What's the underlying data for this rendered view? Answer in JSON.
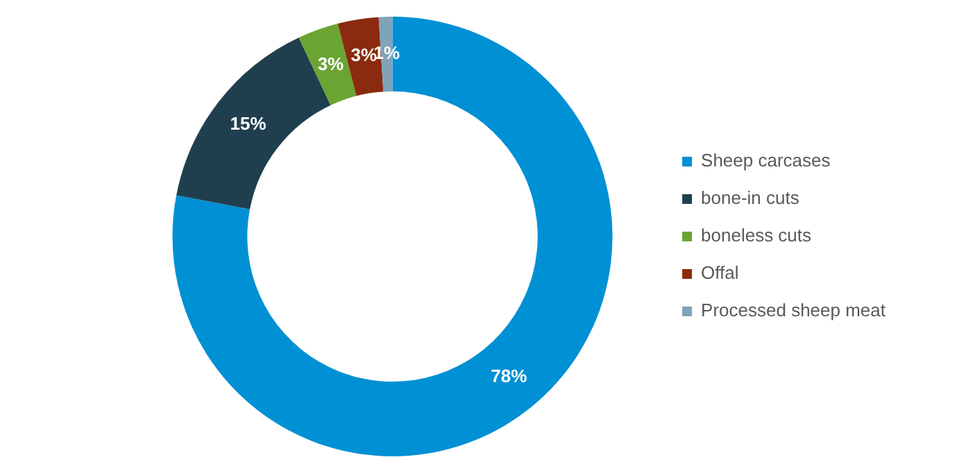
{
  "chart_data": {
    "type": "donut",
    "categories": [
      "Sheep carcases",
      "bone-in cuts",
      "boneless cuts",
      "Offal",
      "Processed sheep meat"
    ],
    "values": [
      78,
      15,
      3,
      3,
      1
    ],
    "colors": [
      "#0090d4",
      "#1f3f4f",
      "#6aa532",
      "#8b2a0f",
      "#7fa3b8"
    ],
    "value_labels": [
      "78%",
      "15%",
      "3%",
      "3%",
      "1%"
    ],
    "legend": "right"
  }
}
